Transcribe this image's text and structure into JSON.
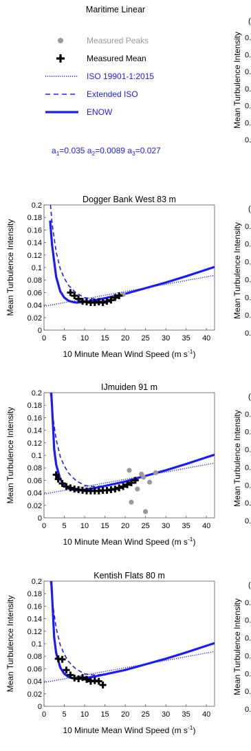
{
  "legend_panel": {
    "title": "Maritime Linear",
    "entries": [
      {
        "label": "Measured Peaks",
        "color": "#9a9a9a",
        "text_color": "#9a9a9a",
        "marker": "gray-dot"
      },
      {
        "label": "Measured Mean",
        "color": "#000000",
        "text_color": "#000000",
        "marker": "black-plus"
      },
      {
        "label": "ISO 19901-1:2015",
        "color": "#1a1aff",
        "text_color": "#1a1aff",
        "marker": "dotted-line"
      },
      {
        "label": "Extended ISO",
        "color": "#1a1aff",
        "text_color": "#1a1aff",
        "marker": "dashed-line"
      },
      {
        "label": "ENOW",
        "color": "#1a1aff",
        "text_color": "#1a1aff",
        "marker": "solid-line"
      }
    ],
    "coefficients": [
      {
        "name": "a",
        "sub": "1",
        "value": "=0.035 "
      },
      {
        "name": "a",
        "sub": "2",
        "value": "=0.0089 "
      },
      {
        "name": "a",
        "sub": "3",
        "value": "=0.027"
      }
    ],
    "coefficient_color": "#1a1aff"
  },
  "right_clipped_panels": {
    "ylabel": "Mean Turbulence Intensity",
    "tick_fragment": "0.",
    "first_tick_fragment": "(",
    "visible_tick_rows": 7
  },
  "chart_data": [
    {
      "type": "line",
      "title": "Dogger Bank West 83 m",
      "xlabel": "10 Minute Mean Wind Speed (m s",
      "xlabel_sup": "-1",
      "xlabel_close": ")",
      "ylabel": "Mean Turbulence Intensity",
      "xlim": [
        0,
        42
      ],
      "ylim": [
        0,
        0.2
      ],
      "xticks": [
        "0",
        "5",
        "10",
        "15",
        "20",
        "25",
        "30",
        "35",
        "40"
      ],
      "yticks": [
        "0",
        "0.02",
        "0.04",
        "0.06",
        "0.08",
        "0.1",
        "0.12",
        "0.14",
        "0.16",
        "0.18",
        "0.2"
      ],
      "series": [
        {
          "name": "Measured Peaks",
          "kind": "scatter",
          "color": "#9a9a9a",
          "x": [
            17.5,
            19.5
          ],
          "y": [
            0.052,
            0.057
          ]
        },
        {
          "name": "Measured Mean",
          "kind": "plus",
          "color": "#000000",
          "x": [
            6.5,
            7.5,
            8.5,
            9.5,
            10.5,
            11.5,
            12.5,
            13.5,
            14.5,
            15.5,
            16.5,
            17.5,
            18.5
          ],
          "y": [
            0.06,
            0.055,
            0.05,
            0.046,
            0.045,
            0.044,
            0.044,
            0.045,
            0.044,
            0.046,
            0.048,
            0.052,
            0.055
          ]
        },
        {
          "name": "ISO 19901-1:2015",
          "kind": "dotted",
          "color": "#1a1aff",
          "x": [
            0,
            42
          ],
          "y": [
            0.038,
            0.0875
          ]
        },
        {
          "name": "Extended ISO",
          "kind": "dashed",
          "color": "#1a1aff",
          "x": [
            1.6,
            2,
            3,
            4,
            5,
            6,
            7,
            8,
            10,
            12,
            15,
            20,
            25,
            30,
            35,
            42
          ],
          "y": [
            0.2,
            0.17,
            0.125,
            0.098,
            0.083,
            0.072,
            0.065,
            0.059,
            0.052,
            0.05,
            0.051,
            0.058,
            0.067,
            0.076,
            0.086,
            0.1
          ]
        },
        {
          "name": "ENOW",
          "kind": "solid",
          "color": "#1a1aff",
          "x": [
            1.5,
            2,
            3,
            4,
            5,
            6,
            7,
            8,
            10,
            12,
            15,
            20,
            25,
            30,
            35,
            42
          ],
          "y": [
            0.175,
            0.135,
            0.085,
            0.062,
            0.052,
            0.047,
            0.045,
            0.044,
            0.045,
            0.047,
            0.051,
            0.058,
            0.067,
            0.076,
            0.086,
            0.101
          ]
        }
      ]
    },
    {
      "type": "line",
      "title": "IJmuiden 91 m",
      "xlabel": "10 Minute Mean Wind Speed (m s",
      "xlabel_sup": "-1",
      "xlabel_close": ")",
      "ylabel": "Mean Turbulence Intensity",
      "xlim": [
        0,
        42
      ],
      "ylim": [
        0,
        0.2
      ],
      "xticks": [
        "0",
        "5",
        "10",
        "15",
        "20",
        "25",
        "30",
        "35",
        "40"
      ],
      "yticks": [
        "0",
        "0.02",
        "0.04",
        "0.06",
        "0.08",
        "0.1",
        "0.12",
        "0.14",
        "0.16",
        "0.18",
        "0.2"
      ],
      "series": [
        {
          "name": "Measured Peaks",
          "kind": "scatter",
          "color": "#9a9a9a",
          "x": [
            21,
            21.5,
            23,
            24,
            24.5,
            25,
            26,
            27.5
          ],
          "y": [
            0.076,
            0.025,
            0.046,
            0.07,
            0.065,
            0.01,
            0.057,
            0.072
          ]
        },
        {
          "name": "Measured Mean",
          "kind": "plus",
          "color": "#000000",
          "x": [
            3,
            3.5,
            4.5,
            5.5,
            6.5,
            7.5,
            8.5,
            9.5,
            10.5,
            11.5,
            12.5,
            13.5,
            14.5,
            15.5,
            16.5,
            17.5,
            18.5,
            19.5,
            20.5,
            21.5,
            22.5
          ],
          "y": [
            0.069,
            0.062,
            0.055,
            0.05,
            0.048,
            0.046,
            0.045,
            0.044,
            0.043,
            0.043,
            0.043,
            0.043,
            0.044,
            0.044,
            0.045,
            0.046,
            0.048,
            0.05,
            0.053,
            0.056,
            0.06
          ]
        },
        {
          "name": "ISO 19901-1:2015",
          "kind": "dotted",
          "color": "#1a1aff",
          "x": [
            0,
            42
          ],
          "y": [
            0.038,
            0.0875
          ]
        },
        {
          "name": "Extended ISO",
          "kind": "dashed",
          "color": "#1a1aff",
          "x": [
            1.6,
            2,
            3,
            4,
            5,
            6,
            7,
            8,
            10,
            12,
            15,
            20,
            25,
            30,
            35,
            42
          ],
          "y": [
            0.2,
            0.17,
            0.125,
            0.098,
            0.083,
            0.072,
            0.065,
            0.059,
            0.052,
            0.05,
            0.051,
            0.058,
            0.067,
            0.076,
            0.086,
            0.1
          ]
        },
        {
          "name": "ENOW",
          "kind": "solid",
          "color": "#1a1aff",
          "x": [
            1.8,
            2,
            2.5,
            3,
            4,
            5,
            6,
            7,
            8,
            10,
            12,
            15,
            20,
            25,
            30,
            35,
            42
          ],
          "y": [
            0.2,
            0.175,
            0.11,
            0.085,
            0.062,
            0.052,
            0.047,
            0.045,
            0.044,
            0.045,
            0.047,
            0.051,
            0.058,
            0.067,
            0.076,
            0.086,
            0.101
          ]
        }
      ]
    },
    {
      "type": "line",
      "title": "Kentish Flats 80 m",
      "xlabel": "10 Minute Mean Wind Speed (m s",
      "xlabel_sup": "-1",
      "xlabel_close": ")",
      "ylabel": "Mean Turbulence Intensity",
      "xlim": [
        0,
        42
      ],
      "ylim": [
        0,
        0.2
      ],
      "xticks": [
        "0",
        "5",
        "10",
        "15",
        "20",
        "25",
        "30",
        "35",
        "40"
      ],
      "yticks": [
        "0",
        "0.02",
        "0.04",
        "0.06",
        "0.08",
        "0.1",
        "0.12",
        "0.14",
        "0.16",
        "0.18",
        "0.2"
      ],
      "series": [
        {
          "name": "Measured Peaks",
          "kind": "scatter",
          "color": "#9a9a9a",
          "x": [],
          "y": []
        },
        {
          "name": "Measured Mean",
          "kind": "plus",
          "color": "#000000",
          "x": [
            3.5,
            4.5,
            5.5,
            6.5,
            7.5,
            8.5,
            9.5,
            10.5,
            11.5,
            12.5,
            13.5,
            14.5
          ],
          "y": [
            0.076,
            0.075,
            0.058,
            0.05,
            0.045,
            0.044,
            0.046,
            0.043,
            0.04,
            0.041,
            0.04,
            0.034
          ]
        },
        {
          "name": "ISO 19901-1:2015",
          "kind": "dotted",
          "color": "#1a1aff",
          "x": [
            0,
            42
          ],
          "y": [
            0.038,
            0.0875
          ]
        },
        {
          "name": "Extended ISO",
          "kind": "dashed",
          "color": "#1a1aff",
          "x": [
            1.6,
            2,
            3,
            4,
            5,
            6,
            7,
            8,
            10,
            12,
            15,
            20,
            25,
            30,
            35,
            42
          ],
          "y": [
            0.2,
            0.17,
            0.125,
            0.098,
            0.083,
            0.072,
            0.065,
            0.059,
            0.052,
            0.05,
            0.051,
            0.058,
            0.067,
            0.076,
            0.086,
            0.1
          ]
        },
        {
          "name": "ENOW",
          "kind": "solid",
          "color": "#1a1aff",
          "x": [
            1.8,
            2,
            2.5,
            3,
            4,
            5,
            6,
            7,
            8,
            10,
            12,
            15,
            20,
            25,
            30,
            35,
            42
          ],
          "y": [
            0.2,
            0.175,
            0.11,
            0.085,
            0.062,
            0.052,
            0.047,
            0.045,
            0.044,
            0.045,
            0.047,
            0.051,
            0.058,
            0.067,
            0.076,
            0.086,
            0.101
          ]
        }
      ]
    }
  ]
}
